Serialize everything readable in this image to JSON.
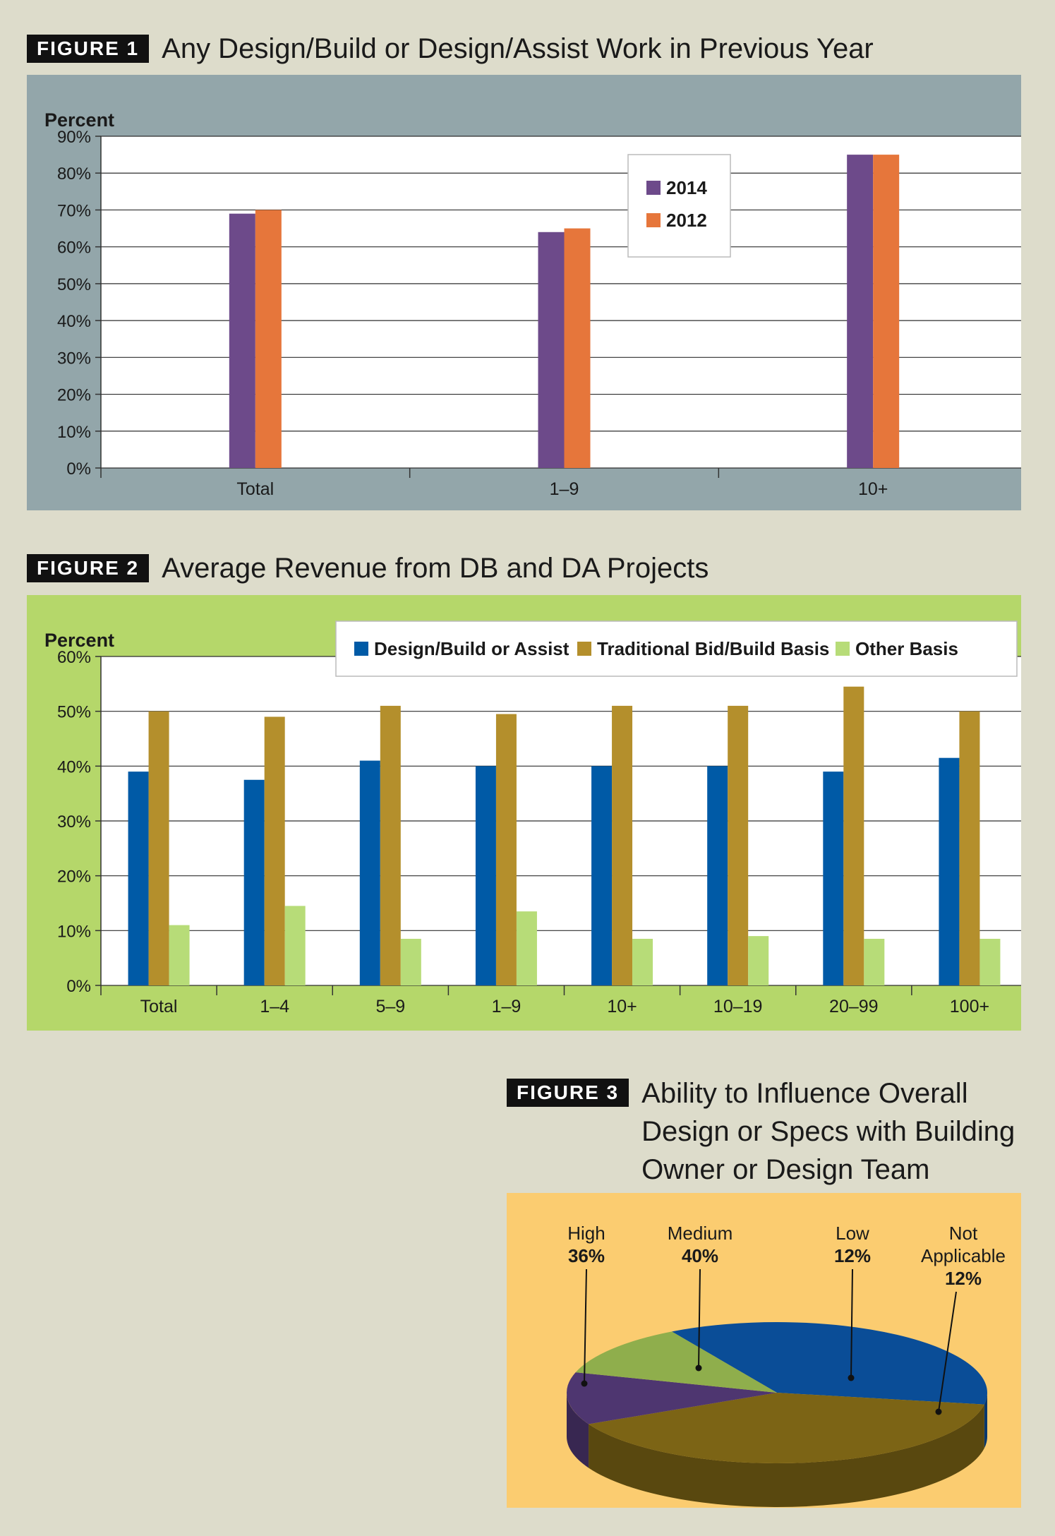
{
  "figures": [
    {
      "badge": "FIGURE 1",
      "title": "Any Design/Build or Design/Assist Work in Previous Year"
    },
    {
      "badge": "FIGURE 2",
      "title": "Average Revenue from DB and DA Projects"
    },
    {
      "badge": "FIGURE 3",
      "title": "Ability to Influence Overall Design or Specs with Building Owner or Design Team"
    }
  ],
  "colors": {
    "fig1_panel": "#93a6aa",
    "fig2_panel": "#b5d76a",
    "fig3_panel": "#fbcc70",
    "series_2014": "#6d4a8a",
    "series_2012": "#e6763b",
    "design_build": "#005aa6",
    "traditional": "#b48f2c",
    "other": "#b7dc78",
    "high": "#0a4d97",
    "medium": "#7c6415",
    "low": "#4e3670",
    "na": "#8fae4c"
  },
  "chart_data": [
    {
      "type": "bar",
      "title": "Any Design/Build or Design/Assist Work in Previous Year",
      "ylabel": "Percent",
      "xlabel": "",
      "categories": [
        "Total",
        "1–9",
        "10+"
      ],
      "series": [
        {
          "name": "2014",
          "values": [
            69,
            64,
            85
          ]
        },
        {
          "name": "2012",
          "values": [
            70,
            65,
            85
          ]
        }
      ],
      "ylim": [
        0,
        90
      ],
      "yticks": [
        "0%",
        "10%",
        "20%",
        "30%",
        "40%",
        "50%",
        "60%",
        "70%",
        "80%",
        "90%"
      ],
      "grid": true,
      "legend": "top-right"
    },
    {
      "type": "bar",
      "title": "Average Revenue from DB and DA Projects",
      "ylabel": "Percent",
      "xlabel": "",
      "categories": [
        "Total",
        "1–4",
        "5–9",
        "1–9",
        "10+",
        "10–19",
        "20–99",
        "100+"
      ],
      "series": [
        {
          "name": "Design/Build or Assist",
          "values": [
            39,
            37.5,
            41,
            40,
            40,
            40,
            39,
            41.5
          ]
        },
        {
          "name": "Traditional Bid/Build Basis",
          "values": [
            50,
            49,
            51,
            49.5,
            51,
            51,
            54.5,
            50
          ]
        },
        {
          "name": "Other Basis",
          "values": [
            11,
            14.5,
            8.5,
            13.5,
            8.5,
            9,
            8.5,
            8.5
          ]
        }
      ],
      "ylim": [
        0,
        60
      ],
      "yticks": [
        "0%",
        "10%",
        "20%",
        "30%",
        "40%",
        "50%",
        "60%"
      ],
      "grid": true,
      "legend": "top"
    },
    {
      "type": "pie",
      "title": "Ability to Influence Overall Design or Specs with Building Owner or Design Team",
      "slices": [
        {
          "label": "High",
          "value": 36,
          "pct": "36%"
        },
        {
          "label": "Medium",
          "value": 40,
          "pct": "40%"
        },
        {
          "label": "Low",
          "value": 12,
          "pct": "12%"
        },
        {
          "label_lines": [
            "Not",
            "Applicable"
          ],
          "value": 12,
          "pct": "12%"
        }
      ]
    }
  ]
}
